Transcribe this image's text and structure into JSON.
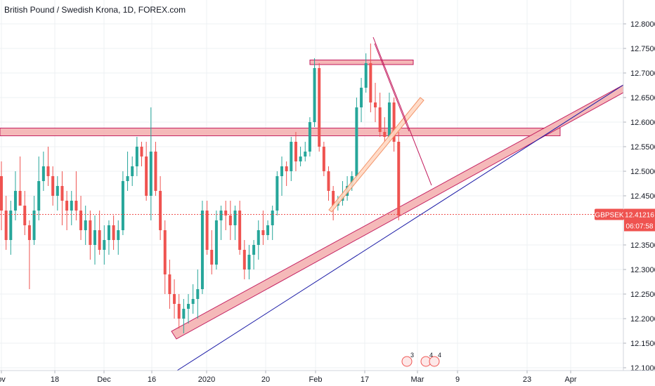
{
  "header": {
    "title": "British Pound / Swedish Krona, 1D, FOREX.com"
  },
  "price_scale": {
    "symbol_badge": "GBPSEK",
    "last_price": "12.41216",
    "countdown": "06:07:58"
  },
  "colors": {
    "up": "#26a69a",
    "down": "#ef5350",
    "band_fill": "#f5b6b6",
    "band_edge": "#c2185b",
    "trendline": "#1a1aa6",
    "last_price_line": "#ef5350",
    "grid": "#eef0f3"
  },
  "chart_data": {
    "type": "candlestick",
    "title": "British Pound / Swedish Krona, 1D, FOREX.com",
    "symbol": "GBPSEK",
    "y_ticks": [
      "12.80000",
      "12.75000",
      "12.70000",
      "12.65000",
      "12.60000",
      "12.55000",
      "12.50000",
      "12.45000",
      "12.35000",
      "12.30000",
      "12.25000",
      "12.20000",
      "12.15000",
      "12.10000"
    ],
    "ylim": [
      12.1,
      12.82
    ],
    "x_ticks": [
      "ov",
      "18",
      "Dec",
      "16",
      "2020",
      "20",
      "Feb",
      "17",
      "Mar",
      "9",
      "23",
      "Apr"
    ],
    "grid": true,
    "last_price": 12.41216,
    "candles": [
      [
        12.49,
        12.52,
        12.38,
        12.42
      ],
      [
        12.42,
        12.45,
        12.34,
        12.36
      ],
      [
        12.36,
        12.44,
        12.33,
        12.42
      ],
      [
        12.42,
        12.5,
        12.4,
        12.46
      ],
      [
        12.46,
        12.53,
        12.43,
        12.43
      ],
      [
        12.43,
        12.46,
        12.37,
        12.39
      ],
      [
        12.39,
        12.4,
        12.26,
        12.36
      ],
      [
        12.36,
        12.45,
        12.35,
        12.42
      ],
      [
        12.42,
        12.53,
        12.4,
        12.48
      ],
      [
        12.48,
        12.54,
        12.46,
        12.51
      ],
      [
        12.51,
        12.55,
        12.47,
        12.49
      ],
      [
        12.49,
        12.51,
        12.43,
        12.45
      ],
      [
        12.45,
        12.49,
        12.42,
        12.47
      ],
      [
        12.47,
        12.5,
        12.39,
        12.44
      ],
      [
        12.44,
        12.46,
        12.38,
        12.42
      ],
      [
        12.42,
        12.46,
        12.39,
        12.44
      ],
      [
        12.44,
        12.5,
        12.4,
        12.42
      ],
      [
        12.42,
        12.45,
        12.36,
        12.38
      ],
      [
        12.38,
        12.43,
        12.35,
        12.4
      ],
      [
        12.4,
        12.42,
        12.32,
        12.35
      ],
      [
        12.35,
        12.41,
        12.31,
        12.38
      ],
      [
        12.38,
        12.42,
        12.33,
        12.34
      ],
      [
        12.34,
        12.39,
        12.31,
        12.36
      ],
      [
        12.36,
        12.4,
        12.33,
        12.39
      ],
      [
        12.39,
        12.41,
        12.34,
        12.36
      ],
      [
        12.36,
        12.4,
        12.33,
        12.38
      ],
      [
        12.38,
        12.5,
        12.37,
        12.48
      ],
      [
        12.48,
        12.54,
        12.46,
        12.49
      ],
      [
        12.49,
        12.53,
        12.47,
        12.51
      ],
      [
        12.51,
        12.57,
        12.49,
        12.55
      ],
      [
        12.55,
        12.56,
        12.51,
        12.53
      ],
      [
        12.53,
        12.56,
        12.44,
        12.45
      ],
      [
        12.45,
        12.63,
        12.4,
        12.54
      ],
      [
        12.54,
        12.56,
        12.45,
        12.46
      ],
      [
        12.46,
        12.49,
        12.36,
        12.38
      ],
      [
        12.38,
        12.4,
        12.25,
        12.29
      ],
      [
        12.29,
        12.32,
        12.22,
        12.25
      ],
      [
        12.25,
        12.28,
        12.2,
        12.23
      ],
      [
        12.23,
        12.25,
        12.18,
        12.2
      ],
      [
        12.2,
        12.24,
        12.17,
        12.22
      ],
      [
        12.22,
        12.25,
        12.19,
        12.23
      ],
      [
        12.23,
        12.27,
        12.21,
        12.24
      ],
      [
        12.24,
        12.3,
        12.2,
        12.26
      ],
      [
        12.26,
        12.44,
        12.25,
        12.42
      ],
      [
        12.42,
        12.44,
        12.33,
        12.34
      ],
      [
        12.34,
        12.38,
        12.29,
        12.31
      ],
      [
        12.31,
        12.42,
        12.3,
        12.4
      ],
      [
        12.4,
        12.43,
        12.36,
        12.42
      ],
      [
        12.42,
        12.44,
        12.38,
        12.41
      ],
      [
        12.41,
        12.44,
        12.36,
        12.39
      ],
      [
        12.39,
        12.43,
        12.36,
        12.42
      ],
      [
        12.42,
        12.44,
        12.33,
        12.34
      ],
      [
        12.34,
        12.36,
        12.28,
        12.3
      ],
      [
        12.3,
        12.35,
        12.28,
        12.33
      ],
      [
        12.33,
        12.36,
        12.3,
        12.35
      ],
      [
        12.35,
        12.4,
        12.32,
        12.38
      ],
      [
        12.38,
        12.42,
        12.35,
        12.37
      ],
      [
        12.37,
        12.4,
        12.36,
        12.39
      ],
      [
        12.39,
        12.43,
        12.36,
        12.42
      ],
      [
        12.42,
        12.5,
        12.41,
        12.49
      ],
      [
        12.49,
        12.53,
        12.45,
        12.51
      ],
      [
        12.51,
        12.52,
        12.47,
        12.5
      ],
      [
        12.5,
        12.57,
        12.48,
        12.56
      ],
      [
        12.56,
        12.58,
        12.5,
        12.52
      ],
      [
        12.52,
        12.55,
        12.51,
        12.53
      ],
      [
        12.53,
        12.56,
        12.52,
        12.54
      ],
      [
        12.54,
        12.61,
        12.53,
        12.6
      ],
      [
        12.6,
        12.73,
        12.59,
        12.71
      ],
      [
        12.71,
        12.72,
        12.54,
        12.55
      ],
      [
        12.55,
        12.56,
        12.49,
        12.5
      ],
      [
        12.5,
        12.51,
        12.44,
        12.46
      ],
      [
        12.46,
        12.47,
        12.4,
        12.43
      ],
      [
        12.43,
        12.45,
        12.42,
        12.44
      ],
      [
        12.44,
        12.48,
        12.43,
        12.45
      ],
      [
        12.45,
        12.49,
        12.44,
        12.47
      ],
      [
        12.47,
        12.5,
        12.46,
        12.49
      ],
      [
        12.49,
        12.65,
        12.48,
        12.63
      ],
      [
        12.63,
        12.69,
        12.6,
        12.67
      ],
      [
        12.67,
        12.74,
        12.66,
        12.72
      ],
      [
        12.72,
        12.76,
        12.62,
        12.64
      ],
      [
        12.64,
        12.68,
        12.6,
        12.63
      ],
      [
        12.63,
        12.66,
        12.57,
        12.58
      ],
      [
        12.58,
        12.61,
        12.56,
        12.57
      ],
      [
        12.57,
        12.66,
        12.56,
        12.64
      ],
      [
        12.64,
        12.65,
        12.54,
        12.56
      ],
      [
        12.56,
        12.58,
        12.4,
        12.41
      ]
    ],
    "horizontal_bands": [
      {
        "label": "resistance",
        "price_top": 12.585,
        "price_bottom": 12.575
      },
      {
        "label": "top",
        "price_top": 12.725,
        "price_bottom": 12.72
      }
    ],
    "annotations": [
      "3",
      "4",
      "4"
    ]
  }
}
